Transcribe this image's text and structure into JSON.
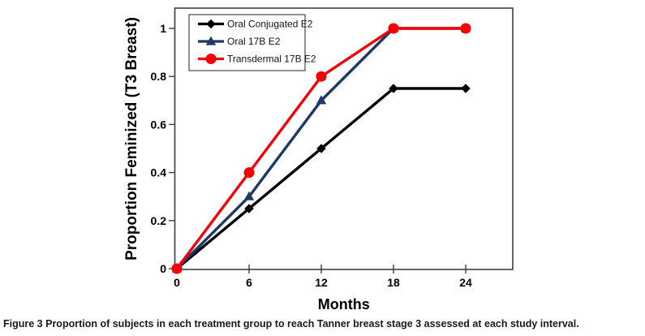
{
  "figure": {
    "caption_label": "Figure 3",
    "caption_text": "Proportion of subjects in each treatment group to reach Tanner breast stage 3 assessed at each study interval."
  },
  "chart_data": {
    "type": "line",
    "title": "",
    "xlabel": "Months",
    "ylabel": "Proportion Feminized (T3 Breast)",
    "x": [
      0,
      6,
      12,
      18,
      24
    ],
    "xticks": [
      0,
      6,
      12,
      18,
      24
    ],
    "yticks": [
      0,
      0.2,
      0.4,
      0.6,
      0.8,
      1
    ],
    "xlim": [
      0,
      27.8
    ],
    "ylim": [
      0,
      1.085
    ],
    "grid": false,
    "legend_position": "top-left",
    "series": [
      {
        "name": "Oral Conjugated E2",
        "marker": "diamond",
        "color": "#000000",
        "values": [
          0,
          0.25,
          0.5,
          0.75,
          0.75
        ]
      },
      {
        "name": "Oral 17B E2",
        "marker": "triangle",
        "color": "#1F3864",
        "values": [
          0,
          0.3,
          0.7,
          1,
          1
        ]
      },
      {
        "name": "Transdermal 17B E2",
        "marker": "circle",
        "color": "#F40008",
        "values": [
          0,
          0.4,
          0.8,
          1,
          1
        ]
      }
    ],
    "frame_color": "#3f3f3f"
  }
}
